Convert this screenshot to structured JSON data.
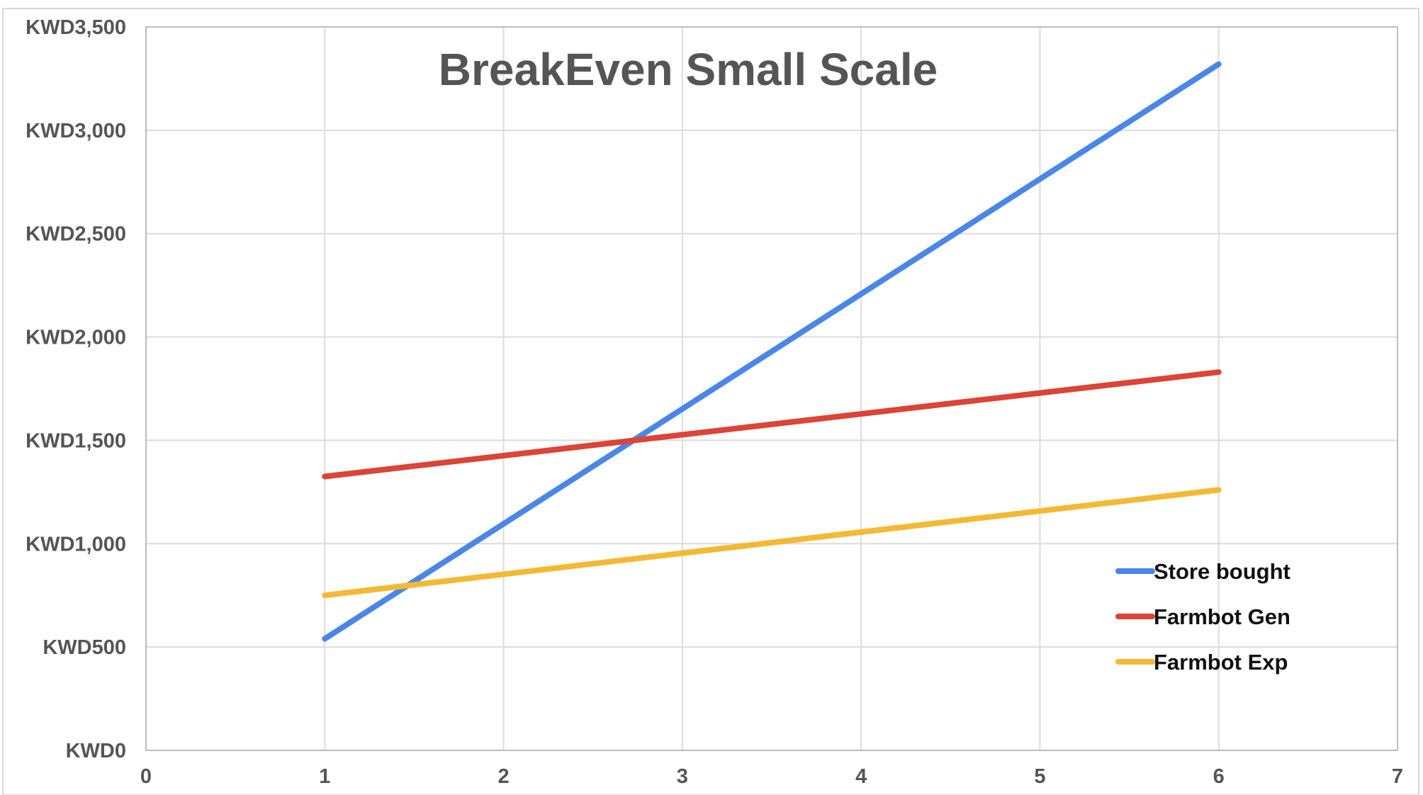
{
  "chart_data": {
    "type": "line",
    "title": "BreakEven Small Scale",
    "xlabel": "",
    "ylabel": "",
    "xlim": [
      0,
      7
    ],
    "ylim": [
      0,
      3500
    ],
    "x_ticks": [
      "0",
      "1",
      "2",
      "3",
      "4",
      "5",
      "6",
      "7"
    ],
    "y_ticks": [
      "KWD0",
      "KWD500",
      "KWD1,000",
      "KWD1,500",
      "KWD2,000",
      "KWD2,500",
      "KWD3,000",
      "KWD3,500"
    ],
    "grid": true,
    "legend_position": "bottom-right",
    "series": [
      {
        "name": "Store bought",
        "color": "#4a86e8",
        "x": [
          1,
          6
        ],
        "y": [
          540,
          3320
        ]
      },
      {
        "name": "Farmbot Gen",
        "color": "#db4437",
        "x": [
          1,
          6
        ],
        "y": [
          1325,
          1830
        ]
      },
      {
        "name": "Farmbot Exp",
        "color": "#f4b934",
        "x": [
          1,
          6
        ],
        "y": [
          750,
          1260
        ]
      }
    ]
  }
}
